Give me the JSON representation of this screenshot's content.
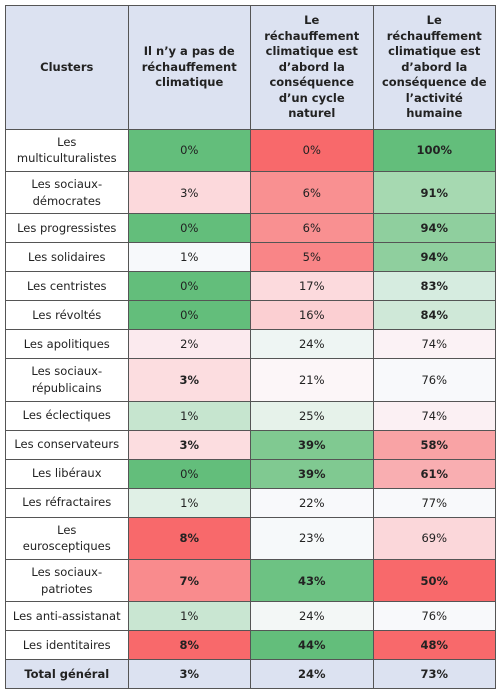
{
  "table": {
    "headers": [
      "Clusters",
      "Il n’y a pas de réchauffement climatique",
      "Le réchauffement climatique est d’abord la conséquence d’un cycle naturel",
      "Le réchauffement climatique est d’abord la conséquence de l’activité humaine"
    ],
    "header_color": "#dce2f1",
    "rows": [
      {
        "label": "Les multiculturalistes",
        "values": [
          "0%",
          "0%",
          "100%"
        ],
        "bold": [
          false,
          false,
          true
        ],
        "colors": [
          "#63be7b",
          "#f8696b",
          "#63be7b"
        ]
      },
      {
        "label": "Les sociaux-démocrates",
        "values": [
          "3%",
          "6%",
          "91%"
        ],
        "bold": [
          false,
          false,
          true
        ],
        "colors": [
          "#fcd9dc",
          "#f99091",
          "#a6d9b1"
        ]
      },
      {
        "label": "Les progressistes",
        "values": [
          "0%",
          "6%",
          "94%"
        ],
        "bold": [
          false,
          false,
          true
        ],
        "colors": [
          "#63be7b",
          "#f99091",
          "#8fcf9e"
        ]
      },
      {
        "label": "Les solidaires",
        "values": [
          "1%",
          "5%",
          "94%"
        ],
        "bold": [
          false,
          false,
          true
        ],
        "colors": [
          "#f7f9fb",
          "#f98587",
          "#8fcf9e"
        ]
      },
      {
        "label": "Les centristes",
        "values": [
          "0%",
          "17%",
          "83%"
        ],
        "bold": [
          false,
          false,
          true
        ],
        "colors": [
          "#63be7b",
          "#fcdadd",
          "#d6ece0"
        ]
      },
      {
        "label": "Les révoltés",
        "values": [
          "0%",
          "16%",
          "84%"
        ],
        "bold": [
          false,
          false,
          true
        ],
        "colors": [
          "#63be7b",
          "#fbcfd2",
          "#cfe8d8"
        ]
      },
      {
        "label": "Les apolitiques",
        "values": [
          "2%",
          "24%",
          "74%"
        ],
        "bold": [
          false,
          false,
          false
        ],
        "colors": [
          "#fbeaee",
          "#eef5f3",
          "#fbf2f5"
        ]
      },
      {
        "label": "Les sociaux-républicains",
        "values": [
          "3%",
          "21%",
          "76%"
        ],
        "bold": [
          true,
          false,
          false
        ],
        "colors": [
          "#fcdde0",
          "#fcf6f8",
          "#f8f9fb"
        ]
      },
      {
        "label": "Les éclectiques",
        "values": [
          "1%",
          "25%",
          "74%"
        ],
        "bold": [
          false,
          false,
          false
        ],
        "colors": [
          "#c6e5cf",
          "#e6f2ea",
          "#fbf0f3"
        ]
      },
      {
        "label": "Les conservateurs",
        "values": [
          "3%",
          "39%",
          "58%"
        ],
        "bold": [
          true,
          true,
          true
        ],
        "colors": [
          "#fcdde0",
          "#80c991",
          "#f9a3a5"
        ]
      },
      {
        "label": "Les libéraux",
        "values": [
          "0%",
          "39%",
          "61%"
        ],
        "bold": [
          false,
          true,
          true
        ],
        "colors": [
          "#63be7b",
          "#80c991",
          "#f9aeb1"
        ]
      },
      {
        "label": "Les réfractaires",
        "values": [
          "1%",
          "22%",
          "77%"
        ],
        "bold": [
          false,
          false,
          false
        ],
        "colors": [
          "#e0f0e6",
          "#f8f9fb",
          "#f8f9fb"
        ]
      },
      {
        "label": "Les eurosceptiques",
        "values": [
          "8%",
          "23%",
          "69%"
        ],
        "bold": [
          true,
          false,
          false
        ],
        "colors": [
          "#f8696b",
          "#f6f9fa",
          "#fbd7da"
        ]
      },
      {
        "label": "Les sociaux-patriotes",
        "values": [
          "7%",
          "43%",
          "50%"
        ],
        "bold": [
          true,
          true,
          true
        ],
        "colors": [
          "#f98b8d",
          "#6dc283",
          "#f8696b"
        ]
      },
      {
        "label": "Les anti-assistanat",
        "values": [
          "1%",
          "24%",
          "76%"
        ],
        "bold": [
          false,
          false,
          false
        ],
        "colors": [
          "#c9e6d2",
          "#f3f7f6",
          "#f8f9fb"
        ]
      },
      {
        "label": "Les identitaires",
        "values": [
          "8%",
          "44%",
          "48%"
        ],
        "bold": [
          true,
          true,
          true
        ],
        "colors": [
          "#f8696b",
          "#63be7b",
          "#f8696b"
        ]
      }
    ],
    "total": {
      "label": "Total général",
      "values": [
        "3%",
        "24%",
        "73%"
      ],
      "color": "#dce2f1"
    }
  }
}
